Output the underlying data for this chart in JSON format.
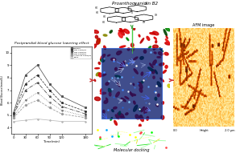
{
  "title": "Proanthocyanidin B2",
  "bg_color": "#ffffff",
  "line_chart": {
    "title": "Postprandial blood glucose lowering effect",
    "xlabel": "Time(min)",
    "ylabel": "Blood Glucose(mmol/L)",
    "x_ticks": [
      0,
      30,
      60,
      90,
      120,
      180
    ],
    "series": [
      {
        "label": "Sucrose",
        "color": "#555555",
        "linestyle": "-",
        "marker": "s",
        "y": [
          5.2,
          8.2,
          9.0,
          7.5,
          6.5,
          5.6
        ]
      },
      {
        "label": "PB2 20mg/kg",
        "color": "#333333",
        "linestyle": "--",
        "marker": "o",
        "y": [
          5.1,
          7.5,
          8.2,
          7.0,
          6.0,
          5.3
        ]
      },
      {
        "label": "PB2 40mg/kg",
        "color": "#444444",
        "linestyle": "-.",
        "marker": "^",
        "y": [
          5.0,
          7.0,
          7.6,
          6.5,
          5.7,
          5.1
        ]
      },
      {
        "label": "PB2 80mg/kg",
        "color": "#777777",
        "linestyle": ":",
        "marker": "v",
        "y": [
          4.9,
          6.2,
          6.8,
          6.0,
          5.4,
          4.9
        ]
      },
      {
        "label": "Acarbose 10mg/kg",
        "color": "#999999",
        "linestyle": "--",
        "marker": "D",
        "y": [
          4.8,
          5.8,
          6.2,
          5.6,
          5.1,
          4.8
        ]
      },
      {
        "label": "Blank",
        "color": "#bbbbbb",
        "linestyle": "-",
        "marker": "x",
        "y": [
          4.5,
          4.6,
          4.7,
          4.6,
          4.5,
          4.5
        ]
      }
    ],
    "ylim": [
      3.5,
      10.5
    ],
    "xlim": [
      -5,
      195
    ]
  },
  "arrow_color": "#cc3333",
  "green_arrow_color": "#44aa44",
  "molecular_docking_label": "Molecular docking",
  "afm_label": "AFM image",
  "height_label": "Height",
  "height_scale": "2.0 μm",
  "height_zero": "0.0"
}
